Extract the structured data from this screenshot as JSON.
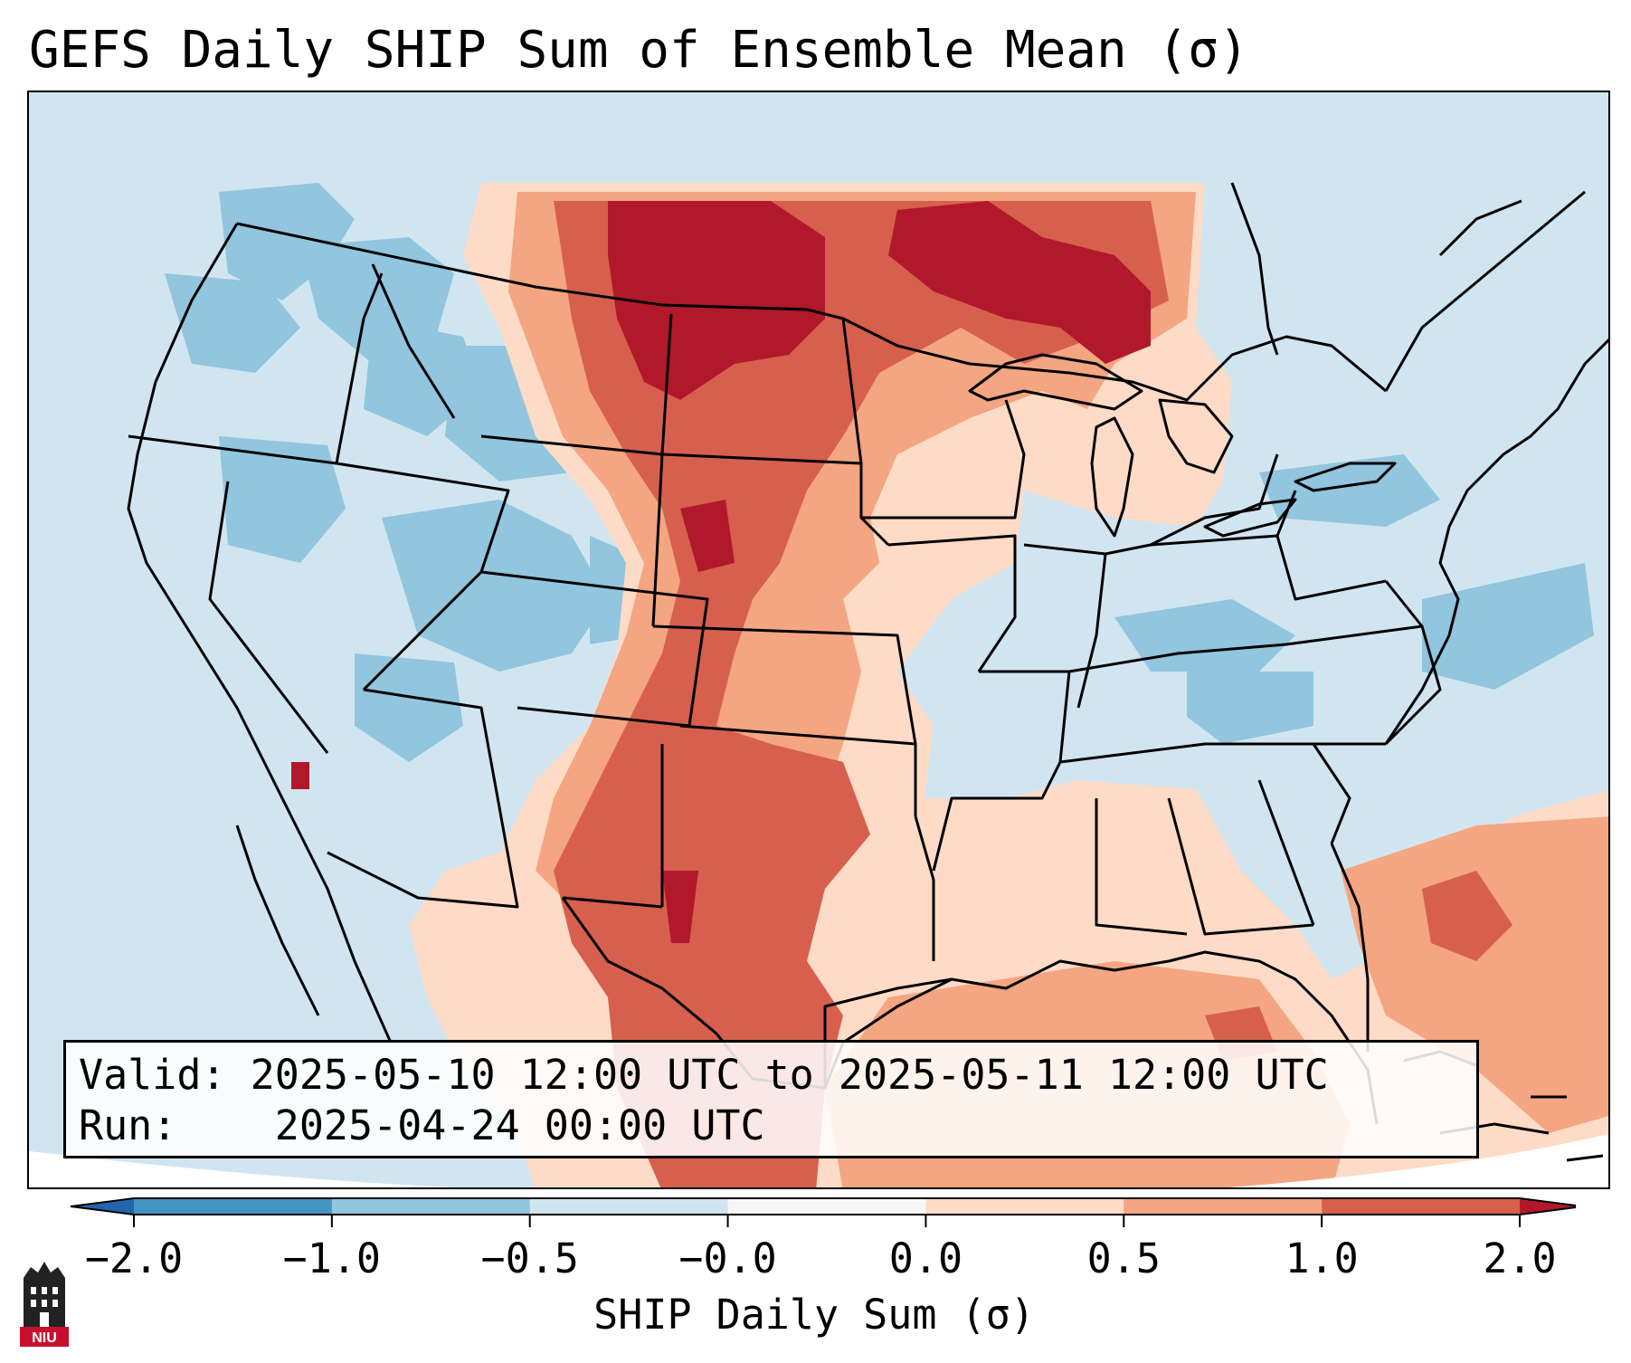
{
  "title": "GEFS Daily SHIP Sum of Ensemble Mean (σ)",
  "info": {
    "valid_label": "Valid:",
    "valid_value": "2025-05-10 12:00 UTC to 2025-05-11 12:00 UTC",
    "run_label": "Run:",
    "run_value": "2025-04-24 00:00 UTC"
  },
  "colorbar": {
    "label": "SHIP Daily Sum (σ)",
    "ticks": [
      "−2.0",
      "−1.0",
      "−0.5",
      "−0.0",
      "0.0",
      "0.5",
      "1.0",
      "2.0"
    ],
    "bins": [
      {
        "range": "< -2.0",
        "color": "#2166ac"
      },
      {
        "range": "-2.0 to -1.0",
        "color": "#4393c3"
      },
      {
        "range": "-1.0 to -0.5",
        "color": "#92c5de"
      },
      {
        "range": "-0.5 to -0.0",
        "color": "#d1e5f0"
      },
      {
        "range": "-0.0 to 0.0",
        "color": "#f7f7f7"
      },
      {
        "range": "0.0 to 0.5",
        "color": "#fddbc7"
      },
      {
        "range": "0.5 to 1.0",
        "color": "#f4a582"
      },
      {
        "range": "1.0 to 2.0",
        "color": "#d6604d"
      },
      {
        "range": "> 2.0",
        "color": "#b2182b"
      }
    ]
  },
  "logo": {
    "text": "NIU",
    "colors": {
      "maroon": "#c8102e",
      "black": "#222222"
    }
  },
  "map": {
    "region": "Continental United States",
    "patterns": [
      {
        "area": "Northern Plains / Dakotas / Minnesota / Upper Great Lakes",
        "class": "> 2.0"
      },
      {
        "area": "Great Plains / Texas / New Mexico",
        "class": "1.0 to 2.0"
      },
      {
        "area": "Gulf of Mexico / western Atlantic",
        "class": "0.5 to 1.0"
      },
      {
        "area": "Mississippi Valley / Southeast",
        "class": "0.0 to 0.5"
      },
      {
        "area": "Western US / Ohio Valley / Northeast",
        "class": "-1.0 to -0.5"
      }
    ]
  }
}
